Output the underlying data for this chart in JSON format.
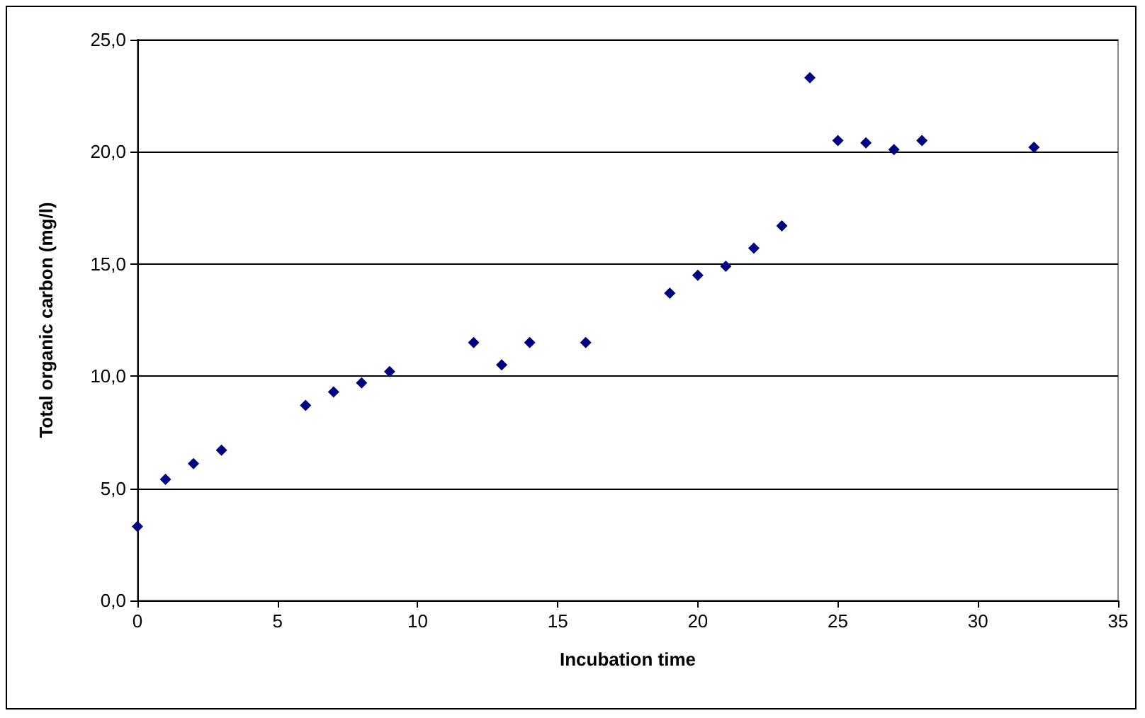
{
  "chart_data": {
    "type": "scatter",
    "xlabel": "Incubation time",
    "ylabel": "Total organic carbon (mg/l)",
    "x": [
      0,
      1,
      2,
      3,
      6,
      7,
      8,
      9,
      12,
      13,
      14,
      16,
      19,
      20,
      21,
      22,
      23,
      24,
      25,
      26,
      27,
      28,
      32
    ],
    "series": [
      {
        "color": "#000080",
        "values": [
          3.3,
          5.4,
          6.1,
          6.7,
          8.7,
          9.3,
          9.7,
          10.2,
          11.5,
          10.5,
          11.5,
          11.5,
          13.7,
          14.5,
          14.9,
          15.7,
          16.7,
          23.3,
          20.5,
          20.4,
          20.1,
          20.5,
          20.2
        ]
      }
    ],
    "xlim": [
      0,
      35
    ],
    "xticks": [
      0,
      5,
      10,
      15,
      20,
      25,
      30,
      35
    ],
    "ylim": [
      0,
      25
    ],
    "yticks": [
      {
        "value": 0,
        "label": "0,0"
      },
      {
        "value": 5,
        "label": "5,0"
      },
      {
        "value": 10,
        "label": "10,0"
      },
      {
        "value": 15,
        "label": "15,0"
      },
      {
        "value": 20,
        "label": "20,0"
      },
      {
        "value": 25,
        "label": "25,0"
      }
    ],
    "grid": "y",
    "marker": "diamond"
  }
}
